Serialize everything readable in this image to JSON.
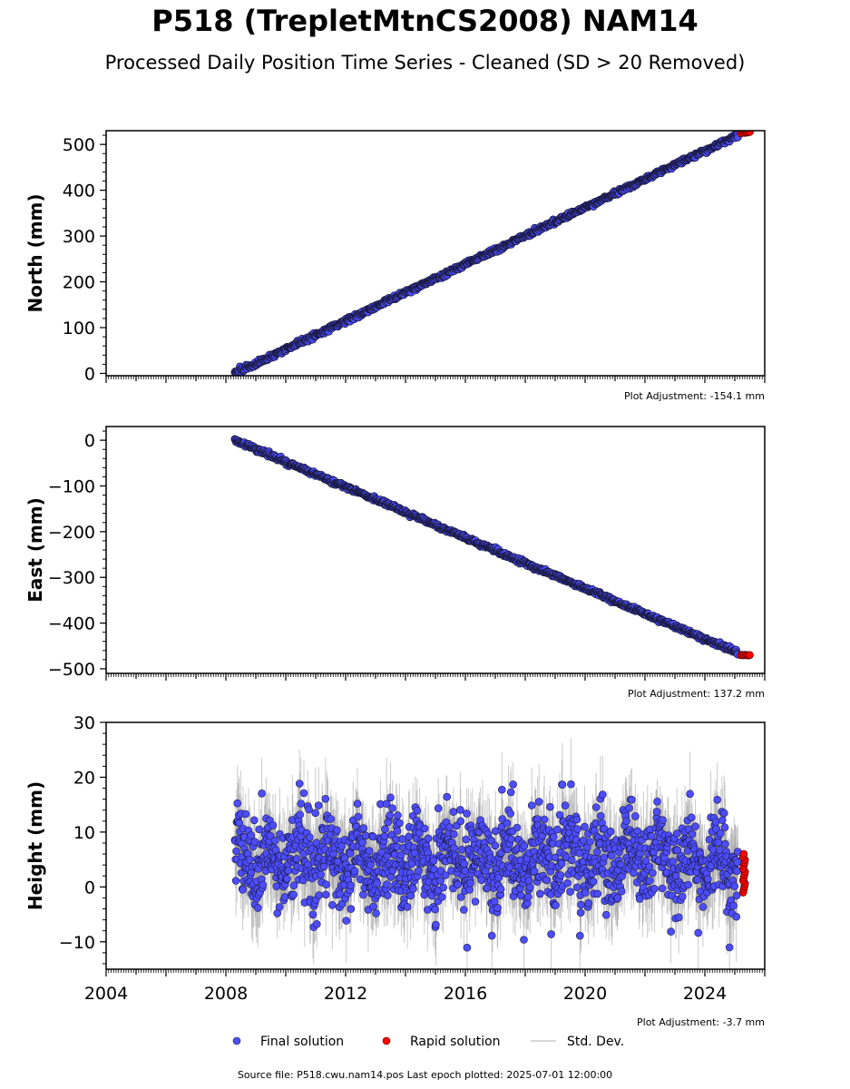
{
  "title": "P518 (TrepletMtnCS2008) NAM14",
  "subtitle": "Processed Daily Position Time Series - Cleaned (SD > 20 Removed)",
  "source_note": "Source file: P518.cwu.nam14.pos  Last epoch plotted: 2025-07-01 12:00:00",
  "legend": [
    {
      "label": "Final solution",
      "color": "#4d4dff",
      "marker": "circle"
    },
    {
      "label": "Rapid solution",
      "color": "#ff0000",
      "marker": "circle"
    },
    {
      "label": "Std. Dev.",
      "color": "#cccccc",
      "marker": "line"
    }
  ],
  "colors": {
    "final": "#4d4dff",
    "rapid": "#ff0000",
    "edge": "#1a1a40",
    "stddev": "#8c8c8c"
  },
  "chart_data": [
    {
      "type": "scatter",
      "ylabel": "North (mm)",
      "adjustment": "Plot Adjustment: -154.1 mm",
      "xlim": [
        2004.0,
        2026.0
      ],
      "ylim": [
        -5,
        530
      ],
      "yticks": [
        0,
        100,
        200,
        300,
        400,
        500
      ],
      "ytick_labels": [
        "0",
        "100",
        "200",
        "300",
        "400",
        "500"
      ],
      "start": 2008.3,
      "end": 2025.1,
      "start_value": 0,
      "end_value": 520,
      "rapid_start": 2025.2,
      "rapid_end": 2025.5,
      "rapid_value": 526,
      "scatter_mm": 2.5
    },
    {
      "type": "scatter",
      "ylabel": "East (mm)",
      "adjustment": "Plot Adjustment: 137.2 mm",
      "xlim": [
        2004.0,
        2026.0
      ],
      "ylim": [
        -510,
        30
      ],
      "yticks": [
        0,
        -100,
        -200,
        -300,
        -400,
        -500
      ],
      "ytick_labels": [
        "0",
        "−100",
        "−200",
        "−300",
        "−400",
        "−500"
      ],
      "start": 2008.3,
      "end": 2025.1,
      "start_value": 0,
      "end_value": -465,
      "rapid_start": 2025.2,
      "rapid_end": 2025.5,
      "rapid_value": -470,
      "scatter_mm": 2.5
    },
    {
      "type": "scatter",
      "ylabel": "Height (mm)",
      "adjustment": "Plot Adjustment: -3.7 mm",
      "xlim": [
        2004.0,
        2026.0
      ],
      "ylim": [
        -15,
        30
      ],
      "yticks": [
        -10,
        0,
        10,
        20,
        30
      ],
      "ytick_labels": [
        "−10",
        "0",
        "10",
        "20",
        "30"
      ],
      "xticks": [
        2004,
        2008,
        2012,
        2016,
        2020,
        2024
      ],
      "xtick_labels": [
        "2004",
        "2008",
        "2012",
        "2016",
        "2020",
        "2024"
      ],
      "start": 2008.3,
      "end": 2025.1,
      "mean": 5,
      "spread": 5.5,
      "annual_amplitude": 3,
      "rapid_start": 2025.2,
      "rapid_end": 2025.5,
      "rapid_range": [
        -1,
        6
      ]
    }
  ]
}
